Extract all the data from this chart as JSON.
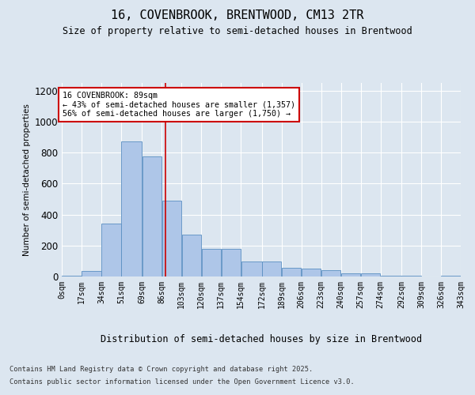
{
  "title1": "16, COVENBROOK, BRENTWOOD, CM13 2TR",
  "title2": "Size of property relative to semi-detached houses in Brentwood",
  "xlabel": "Distribution of semi-detached houses by size in Brentwood",
  "ylabel": "Number of semi-detached properties",
  "annotation_line1": "16 COVENBROOK: 89sqm",
  "annotation_line2": "← 43% of semi-detached houses are smaller (1,357)",
  "annotation_line3": "56% of semi-detached houses are larger (1,750) →",
  "footer1": "Contains HM Land Registry data © Crown copyright and database right 2025.",
  "footer2": "Contains public sector information licensed under the Open Government Licence v3.0.",
  "property_size": 89,
  "bin_edges": [
    0,
    17,
    34,
    51,
    69,
    86,
    103,
    120,
    137,
    154,
    172,
    189,
    206,
    223,
    240,
    257,
    274,
    292,
    309,
    326,
    343
  ],
  "bin_labels": [
    "0sqm",
    "17sqm",
    "34sqm",
    "51sqm",
    "69sqm",
    "86sqm",
    "103sqm",
    "120sqm",
    "137sqm",
    "154sqm",
    "172sqm",
    "189sqm",
    "206sqm",
    "223sqm",
    "240sqm",
    "257sqm",
    "274sqm",
    "292sqm",
    "309sqm",
    "326sqm",
    "343sqm"
  ],
  "counts": [
    3,
    35,
    340,
    870,
    775,
    490,
    270,
    180,
    180,
    95,
    95,
    55,
    50,
    40,
    18,
    18,
    5,
    5,
    0,
    3
  ],
  "bar_color": "#aec6e8",
  "bar_edge_color": "#5a8fc2",
  "vline_color": "#cc0000",
  "vline_x": 89,
  "ylim": [
    0,
    1250
  ],
  "yticks": [
    0,
    200,
    400,
    600,
    800,
    1000,
    1200
  ],
  "background_color": "#dce6f0",
  "plot_bg_color": "#dce6f0"
}
